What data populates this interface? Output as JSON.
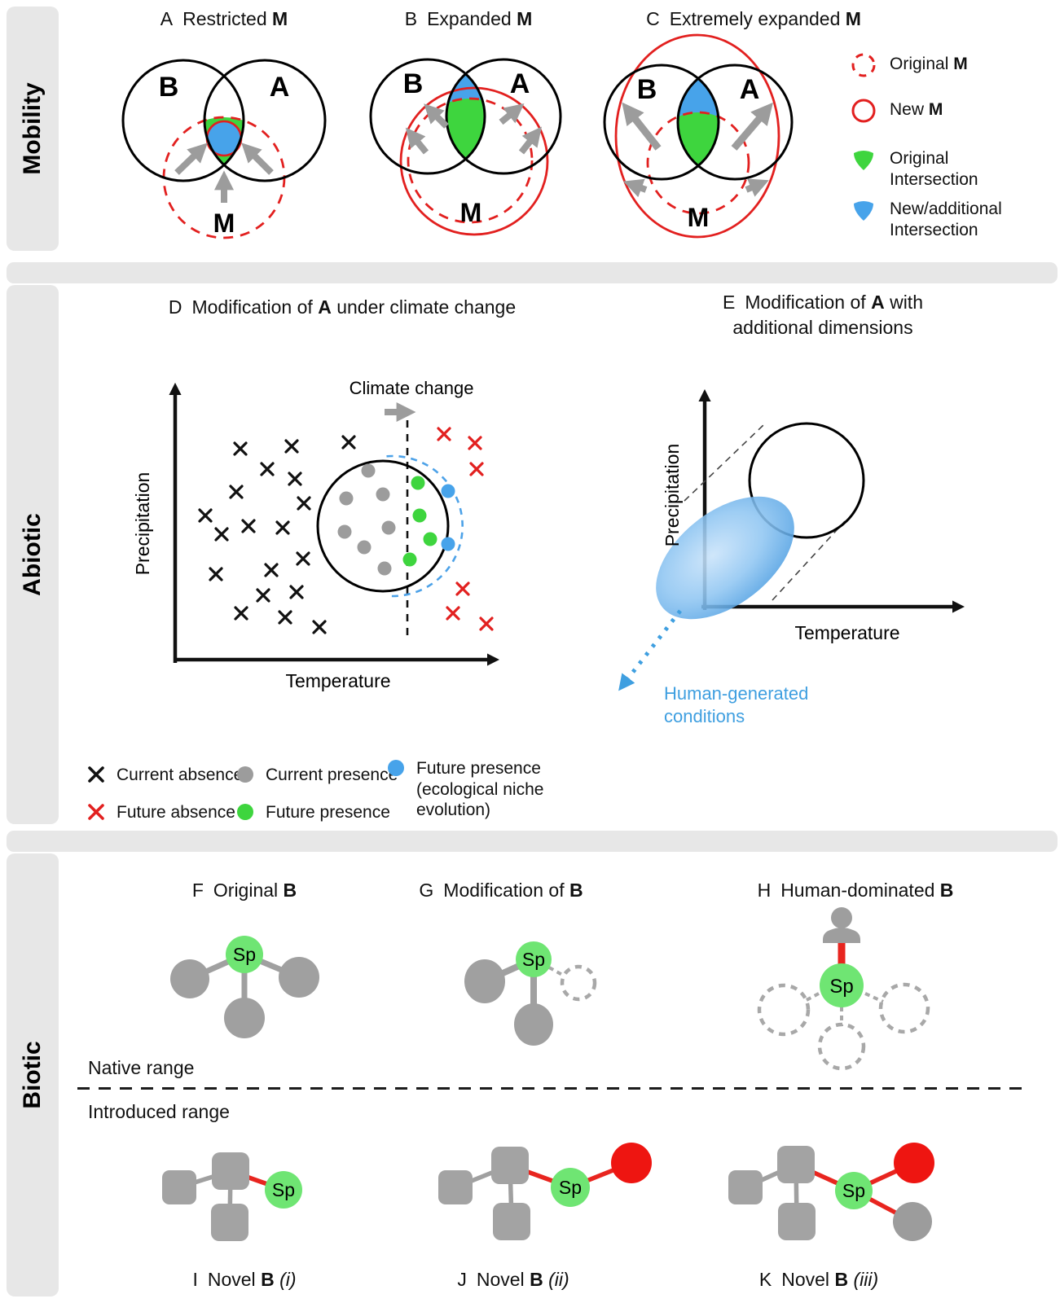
{
  "colors": {
    "red": "#e2201f",
    "bright_red": "#ee1511",
    "green": "#3ed53e",
    "sp_green": "#6fe573",
    "blue": "#47a3ea",
    "blue_text": "#3f9fe0",
    "gray": "#9c9c9c",
    "panel_bg": "#e7e7e7",
    "black": "#111111"
  },
  "sidebar": {
    "mobility_label": "Mobility",
    "abiotic_label": "Abiotic",
    "biotic_label": "Biotic"
  },
  "mobility": {
    "panel_a": {
      "letter": "A",
      "title_pre": "Restricted",
      "title_bold": "M"
    },
    "panel_b": {
      "letter": "B",
      "title_pre": "Expanded",
      "title_bold": "M"
    },
    "panel_c": {
      "letter": "C",
      "title_pre": "Extremely expanded",
      "title_bold": "M"
    },
    "venn": {
      "b": "B",
      "a": "A",
      "m": "M"
    },
    "legend": {
      "original_m": {
        "label": "Original",
        "bold": "M"
      },
      "new_m": {
        "label": "New",
        "bold": "M"
      },
      "original_intersection": {
        "label": "Original Intersection"
      },
      "new_intersection": {
        "label": "New/additional Intersection"
      }
    }
  },
  "abiotic": {
    "panel_d": {
      "letter": "D",
      "title_pre": "Modification of",
      "title_bold": "A",
      "title_post": "under climate change",
      "ylabel": "Precipitation",
      "xlabel": "Temperature",
      "annotation": "Climate change",
      "points": {
        "current_absence": [
          [
            160,
            123
          ],
          [
            223,
            120
          ],
          [
            293,
            115
          ],
          [
            193,
            148
          ],
          [
            227,
            160
          ],
          [
            155,
            176
          ],
          [
            238,
            190
          ],
          [
            117,
            205
          ],
          [
            170,
            218
          ],
          [
            212,
            220
          ],
          [
            137,
            228
          ],
          [
            237,
            258
          ],
          [
            198,
            272
          ],
          [
            130,
            277
          ],
          [
            188,
            303
          ],
          [
            229,
            299
          ],
          [
            161,
            325
          ],
          [
            215,
            330
          ],
          [
            257,
            342
          ]
        ],
        "future_absence": [
          [
            410,
            105
          ],
          [
            448,
            116
          ],
          [
            450,
            148
          ],
          [
            433,
            295
          ],
          [
            421,
            325
          ],
          [
            462,
            338
          ]
        ],
        "current_presence": [
          [
            317,
            150
          ],
          [
            290,
            184
          ],
          [
            335,
            179
          ],
          [
            342,
            220
          ],
          [
            288,
            225
          ],
          [
            312,
            244
          ],
          [
            337,
            270
          ]
        ],
        "future_presence": [
          [
            378,
            165
          ],
          [
            380,
            205
          ],
          [
            393,
            234
          ],
          [
            368,
            259
          ]
        ],
        "future_presence_evolution": [
          [
            415,
            175
          ],
          [
            415,
            240
          ]
        ]
      }
    },
    "panel_e": {
      "letter": "E",
      "title_pre": "Modification of",
      "title_bold": "A",
      "title_post": "with additional dimensions",
      "ylabel": "Precipitation",
      "xlabel": "Temperature",
      "annotation": "Human-generated conditions"
    },
    "legend": {
      "current_absence": "Current absence",
      "future_absence": "Future absence",
      "current_presence": "Current presence",
      "future_presence": "Future presence",
      "future_presence_evolution": "Future presence (ecological niche evolution)"
    }
  },
  "biotic": {
    "native_range": "Native range",
    "introduced_range": "Introduced range",
    "sp": "Sp",
    "panel_f": {
      "letter": "F",
      "title_pre": "Original",
      "title_bold": "B"
    },
    "panel_g": {
      "letter": "G",
      "title_pre": "Modification of",
      "title_bold": "B"
    },
    "panel_h": {
      "letter": "H",
      "title_pre": "Human-dominated",
      "title_bold": "B"
    },
    "panel_i": {
      "letter": "I",
      "title_pre": "Novel",
      "title_bold": "B",
      "title_italic": "(i)"
    },
    "panel_j": {
      "letter": "J",
      "title_pre": "Novel",
      "title_bold": "B",
      "title_italic": "(ii)"
    },
    "panel_k": {
      "letter": "K",
      "title_pre": "Novel",
      "title_bold": "B",
      "title_italic": "(iii)"
    }
  }
}
